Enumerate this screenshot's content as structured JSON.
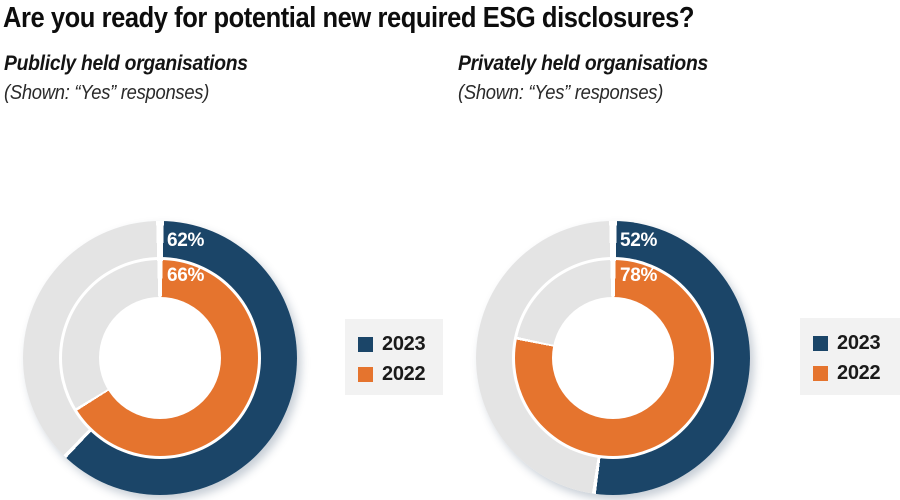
{
  "title": "Are you ready for potential new required ESG disclosures?",
  "colors": {
    "navy": "#1b4568",
    "orange": "#e5742e",
    "ring_gray": "#e4e4e4",
    "legend_bg": "#f2f2f2"
  },
  "charts": [
    {
      "subtitle": "Publicly held organisations",
      "note": "(Shown: “Yes” responses)",
      "series": [
        {
          "name": "2023",
          "ring": "outer",
          "value": 62,
          "label": "62%"
        },
        {
          "name": "2022",
          "ring": "inner",
          "value": 66,
          "label": "66%"
        }
      ]
    },
    {
      "subtitle": "Privately held organisations",
      "note": "(Shown: “Yes” responses)",
      "series": [
        {
          "name": "2023",
          "ring": "outer",
          "value": 52,
          "label": "52%"
        },
        {
          "name": "2022",
          "ring": "inner",
          "value": 78,
          "label": "78%"
        }
      ]
    }
  ],
  "legend": {
    "items": [
      {
        "label": "2023",
        "color": "#1b4568"
      },
      {
        "label": "2022",
        "color": "#e5742e"
      }
    ]
  },
  "chart_data": [
    {
      "type": "pie",
      "variant": "double-ring-donut",
      "title": "Publicly held organisations",
      "subtitle": "(Shown: “Yes” responses)",
      "unit": "percent",
      "start_angle": "top",
      "direction": "clockwise",
      "series": [
        {
          "name": "2023",
          "ring": "outer",
          "value": 62,
          "color": "#1b4568"
        },
        {
          "name": "2022",
          "ring": "inner",
          "value": 66,
          "color": "#e5742e"
        }
      ],
      "remainder_color": "#e4e4e4",
      "legend_position": "right",
      "legend_entries": [
        "2023",
        "2022"
      ]
    },
    {
      "type": "pie",
      "variant": "double-ring-donut",
      "title": "Privately held organisations",
      "subtitle": "(Shown: “Yes” responses)",
      "unit": "percent",
      "start_angle": "top",
      "direction": "clockwise",
      "series": [
        {
          "name": "2023",
          "ring": "outer",
          "value": 52,
          "color": "#1b4568"
        },
        {
          "name": "2022",
          "ring": "inner",
          "value": 78,
          "color": "#e5742e"
        }
      ],
      "remainder_color": "#e4e4e4",
      "legend_position": "right",
      "legend_entries": [
        "2023",
        "2022"
      ]
    }
  ]
}
